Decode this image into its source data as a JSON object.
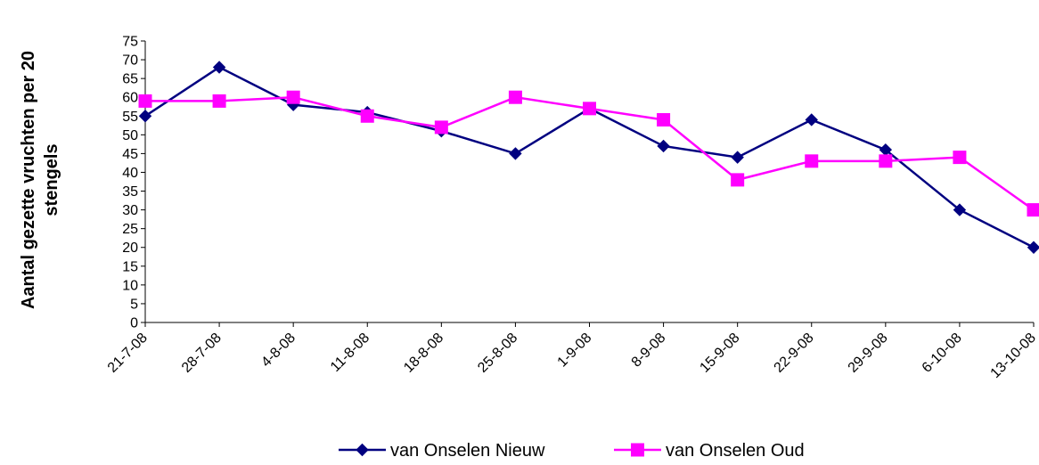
{
  "chart_data": {
    "type": "line",
    "title": "",
    "xlabel": "",
    "ylabel_lines": [
      "Aantal gezette vruchten per 20",
      "stengels"
    ],
    "categories": [
      "21-7-08",
      "28-7-08",
      "4-8-08",
      "11-8-08",
      "18-8-08",
      "25-8-08",
      "1-9-08",
      "8-9-08",
      "15-9-08",
      "22-9-08",
      "29-9-08",
      "6-10-08",
      "13-10-08"
    ],
    "ylim": [
      0,
      75
    ],
    "ytick_step": 5,
    "grid": false,
    "legend_position": "bottom",
    "series": [
      {
        "name": "van Onselen Nieuw",
        "color": "#000080",
        "marker": "diamond",
        "values": [
          55,
          68,
          58,
          56,
          51,
          45,
          57,
          47,
          44,
          54,
          46,
          30,
          20
        ]
      },
      {
        "name": "van Onselen Oud",
        "color": "#FF00FF",
        "marker": "square",
        "values": [
          59,
          59,
          60,
          55,
          52,
          60,
          57,
          54,
          38,
          43,
          43,
          44,
          30
        ]
      }
    ]
  }
}
